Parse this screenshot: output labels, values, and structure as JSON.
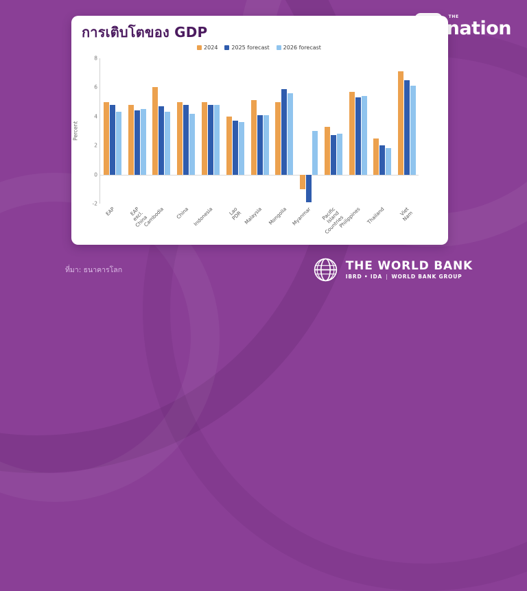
{
  "page": {
    "background_color": "#8A3F96"
  },
  "card": {
    "title": "การเติบโตของ GDP",
    "title_color": "#4B1A5F"
  },
  "nation_logo": {
    "the": "THE",
    "name": "nation"
  },
  "world_bank_logo": {
    "title": "THE WORLD BANK",
    "sub_left": "IBRD • IDA",
    "divider": "|",
    "sub_right": "WORLD BANK GROUP"
  },
  "footer": {
    "source": "ที่มา: ธนาคารโลก"
  },
  "chart_data": {
    "type": "bar",
    "title": "การเติบโตของ GDP",
    "xlabel": "",
    "ylabel": "Percent",
    "ylim": [
      -2,
      8
    ],
    "yticks": [
      8,
      6,
      4,
      2,
      0,
      -2
    ],
    "grid": false,
    "legend_position": "top-center",
    "categories": [
      "EAP",
      "EAP excl. China",
      "Cambodia",
      "China",
      "Indonesia",
      "Lao PDR",
      "Malaysia",
      "Mongolia",
      "Myanmar",
      "Pacific Island\nCountries",
      "Philippines",
      "Thailand",
      "Viet Nam"
    ],
    "series": [
      {
        "name": "2024",
        "color": "#ECA14E",
        "values": [
          5.0,
          4.8,
          6.0,
          5.0,
          5.0,
          4.0,
          5.1,
          5.0,
          -1.0,
          3.3,
          5.7,
          2.5,
          7.1
        ]
      },
      {
        "name": "2025 forecast",
        "color": "#2F5CAD",
        "values": [
          4.8,
          4.4,
          4.7,
          4.8,
          4.8,
          3.7,
          4.1,
          5.9,
          -1.9,
          2.7,
          5.3,
          2.0,
          6.5
        ]
      },
      {
        "name": "2026 forecast",
        "color": "#90C4EE",
        "values": [
          4.3,
          4.5,
          4.3,
          4.2,
          4.8,
          3.6,
          4.1,
          5.6,
          3.0,
          2.8,
          5.4,
          1.8,
          6.1
        ]
      }
    ]
  }
}
